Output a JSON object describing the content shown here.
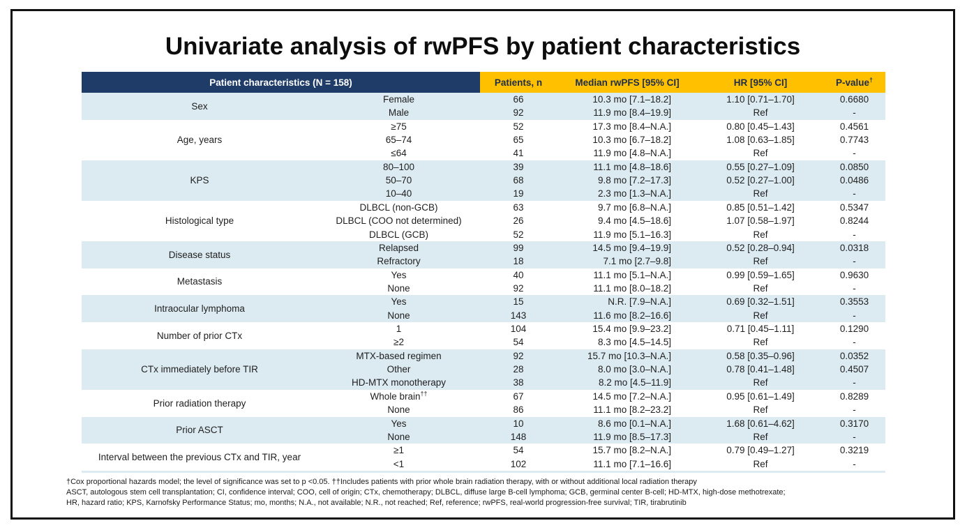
{
  "slide": {
    "title": "Univariate analysis of rwPFS by patient characteristics"
  },
  "colors": {
    "header_navy": "#1f3c68",
    "header_gold": "#ffc000",
    "row_blue": "#dceaf1"
  },
  "table": {
    "header": {
      "characteristics": "Patient characteristics  (N = 158)",
      "patients": "Patients, n",
      "median": "Median rwPFS [95% CI]",
      "hr": "HR [95% CI]",
      "pvalue": "P-value",
      "pvalue_sup": "†"
    },
    "groups": [
      {
        "label": "Sex",
        "rows": [
          {
            "category": "Female",
            "n": "66",
            "median": "10.3 mo [7.1–18.2]",
            "hr": "1.10 [0.71–1.70]",
            "p": "0.6680"
          },
          {
            "category": "Male",
            "n": "92",
            "median": "11.9 mo [8.4–19.9]",
            "hr": "Ref",
            "p": "-"
          }
        ]
      },
      {
        "label": "Age, years",
        "rows": [
          {
            "category": "≥75",
            "n": "52",
            "median": "17.3 mo [8.4–N.A.]",
            "hr": "0.80 [0.45–1.43]",
            "p": "0.4561"
          },
          {
            "category": "65–74",
            "n": "65",
            "median": "10.3 mo [6.7–18.2]",
            "hr": "1.08 [0.63–1.85]",
            "p": "0.7743"
          },
          {
            "category": "≤64",
            "n": "41",
            "median": "11.9 mo [4.8–N.A.]",
            "hr": "Ref",
            "p": "-"
          }
        ]
      },
      {
        "label": "KPS",
        "rows": [
          {
            "category": "80–100",
            "n": "39",
            "median": "11.1 mo [4.8–18.6]",
            "hr": "0.55 [0.27–1.09]",
            "p": "0.0850"
          },
          {
            "category": "50–70",
            "n": "68",
            "median": "9.8 mo [7.2–17.3]",
            "hr": "0.52 [0.27–1.00]",
            "p": "0.0486"
          },
          {
            "category": "10–40",
            "n": "19",
            "median": "2.3 mo [1.3–N.A.]",
            "hr": "Ref",
            "p": "-"
          }
        ]
      },
      {
        "label": "Histological type",
        "rows": [
          {
            "category": "DLBCL (non-GCB)",
            "n": "63",
            "median": "9.7 mo [6.8–N.A.]",
            "hr": "0.85 [0.51–1.42]",
            "p": "0.5347"
          },
          {
            "category": "DLBCL (COO not determined)",
            "n": "26",
            "median": "9.4 mo [4.5–18.6]",
            "hr": "1.07 [0.58–1.97]",
            "p": "0.8244"
          },
          {
            "category": "DLBCL (GCB)",
            "n": "52",
            "median": "11.9 mo [5.1–16.3]",
            "hr": "Ref",
            "p": "-"
          }
        ]
      },
      {
        "label": "Disease status",
        "rows": [
          {
            "category": "Relapsed",
            "n": "99",
            "median": "14.5 mo [9.4–19.9]",
            "hr": "0.52 [0.28–0.94]",
            "p": "0.0318"
          },
          {
            "category": "Refractory",
            "n": "18",
            "median": "7.1 mo [2.7–9.8]",
            "hr": "Ref",
            "p": "-"
          }
        ]
      },
      {
        "label": "Metastasis",
        "rows": [
          {
            "category": "Yes",
            "n": "40",
            "median": "11.1 mo [5.1–N.A.]",
            "hr": "0.99 [0.59–1.65]",
            "p": "0.9630"
          },
          {
            "category": "None",
            "n": "92",
            "median": "11.1 mo [8.0–18.2]",
            "hr": "Ref",
            "p": "-"
          }
        ]
      },
      {
        "label": "Intraocular lymphoma",
        "rows": [
          {
            "category": "Yes",
            "n": "15",
            "median": "N.R. [7.9–N.A.]",
            "hr": "0.69 [0.32–1.51]",
            "p": "0.3553"
          },
          {
            "category": "None",
            "n": "143",
            "median": "11.6 mo [8.2–16.6]",
            "hr": "Ref",
            "p": "-"
          }
        ]
      },
      {
        "label": "Number of prior CTx",
        "rows": [
          {
            "category": "1",
            "n": "104",
            "median": "15.4 mo [9.9–23.2]",
            "hr": "0.71 [0.45–1.11]",
            "p": "0.1290"
          },
          {
            "category": "≥2",
            "n": "54",
            "median": "8.3 mo [4.5–14.5]",
            "hr": "Ref",
            "p": "-"
          }
        ]
      },
      {
        "label": "CTx immediately before TIR",
        "rows": [
          {
            "category": "MTX-based regimen",
            "n": "92",
            "median": "15.7 mo [10.3–N.A.]",
            "hr": "0.58 [0.35–0.96]",
            "p": "0.0352"
          },
          {
            "category": "Other",
            "n": "28",
            "median": "8.0 mo [3.0–N.A.]",
            "hr": "0.78 [0.41–1.48]",
            "p": "0.4507"
          },
          {
            "category": "HD-MTX monotherapy",
            "n": "38",
            "median": "8.2 mo [4.5–11.9]",
            "hr": "Ref",
            "p": "-"
          }
        ]
      },
      {
        "label": "Prior radiation therapy",
        "rows": [
          {
            "category": "Whole brain",
            "category_sup": "††",
            "n": "67",
            "median": "14.5 mo [7.2–N.A.]",
            "hr": "0.95 [0.61–1.49]",
            "p": "0.8289"
          },
          {
            "category": "None",
            "n": "86",
            "median": "11.1 mo [8.2–23.2]",
            "hr": "Ref",
            "p": "-"
          }
        ]
      },
      {
        "label": "Prior ASCT",
        "rows": [
          {
            "category": "Yes",
            "n": "10",
            "median": "8.6 mo [0.1–N.A.]",
            "hr": "1.68 [0.61–4.62]",
            "p": "0.3170"
          },
          {
            "category": "None",
            "n": "148",
            "median": "11.9 mo [8.5–17.3]",
            "hr": "Ref",
            "p": "-"
          }
        ]
      },
      {
        "label": "Interval between the previous CTx and TIR, year",
        "rows": [
          {
            "category": "≥1",
            "n": "54",
            "median": "15.7 mo [8.2–N.A.]",
            "hr": "0.79 [0.49–1.27]",
            "p": "0.3219"
          },
          {
            "category": "<1",
            "n": "102",
            "median": "11.1 mo [7.1–16.6]",
            "hr": "Ref",
            "p": "-"
          }
        ]
      }
    ]
  },
  "footnotes": {
    "lines": [
      "†Cox proportional hazards model; the level of significance was set to p <0.05. ††Includes patients with prior whole brain radiation therapy, with or without additional local radiation therapy",
      "ASCT, autologous stem cell transplantation; CI, confidence interval; COO, cell of origin; CTx, chemotherapy; DLBCL, diffuse large B-cell lymphoma; GCB, germinal center B-cell; HD-MTX, high-dose methotrexate;",
      "HR, hazard ratio; KPS, Karnofsky Performance Status; mo, months; N.A., not available; N.R., not reached; Ref, reference; rwPFS, real-world progression-free survival; TIR, tirabrutinib"
    ]
  }
}
